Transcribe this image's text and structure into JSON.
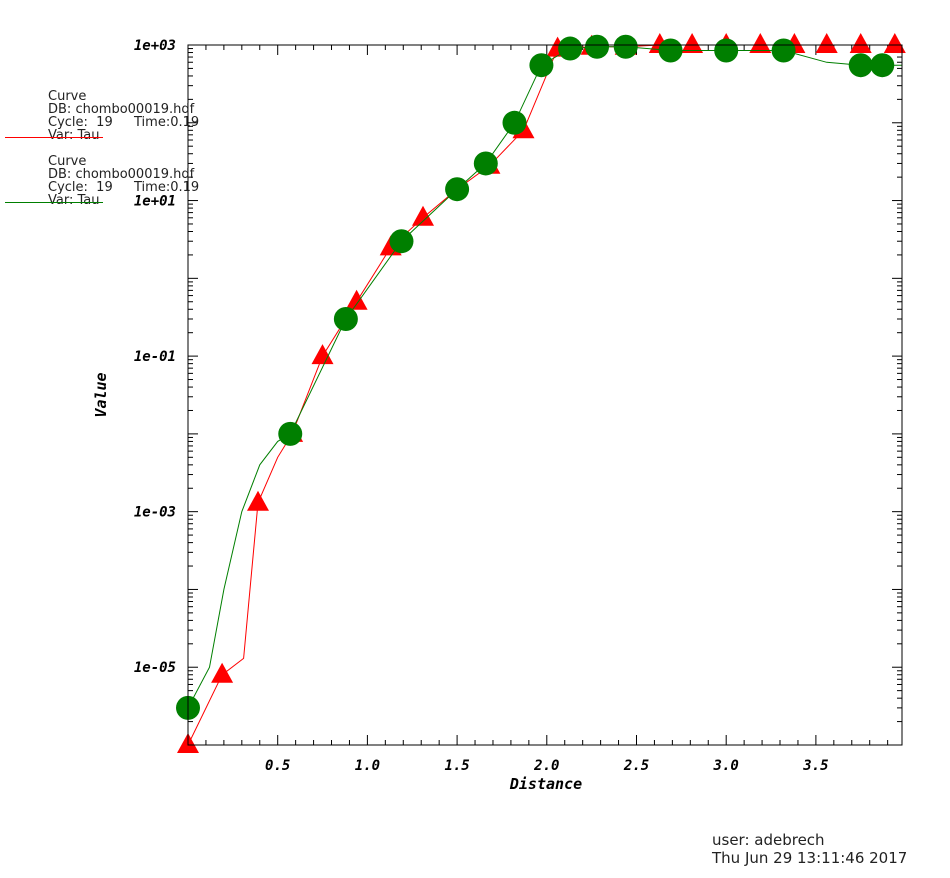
{
  "chart_data": {
    "type": "line",
    "xlabel": "Distance",
    "ylabel": "Value",
    "scale": {
      "x": "linear",
      "y": "log"
    },
    "xlim": [
      0.0,
      3.98
    ],
    "ylim": [
      1e-06,
      1000
    ],
    "x_ticks": [
      0.5,
      1.0,
      1.5,
      2.0,
      2.5,
      3.0,
      3.5
    ],
    "x_tick_labels": [
      "0.5",
      "1.0",
      "1.5",
      "2.0",
      "2.5",
      "3.0",
      "3.5"
    ],
    "y_ticks": [
      1e-05,
      0.001,
      0.1,
      10,
      1000
    ],
    "y_tick_labels": [
      "1e-05",
      "1e-03",
      "1e-01",
      "1e+01",
      "1e+03"
    ],
    "grid": false,
    "legend_position": "left",
    "series": [
      {
        "name": "Curve",
        "color": "#ff0000",
        "marker": "triangle",
        "db": "DB: chombo00019.hdf",
        "cycle": "Cycle:  19",
        "time": "Time:0.19",
        "var": "Var: Tau",
        "x": [
          0.0,
          0.19,
          0.31,
          0.39,
          0.5,
          0.58,
          0.75,
          0.94,
          1.13,
          1.31,
          1.5,
          1.68,
          1.87,
          2.06,
          2.25,
          2.44,
          2.63,
          2.81,
          3.0,
          3.19,
          3.38,
          3.56,
          3.75,
          3.94
        ],
        "y": [
          1e-06,
          8e-06,
          1.3e-05,
          0.0013,
          0.005,
          0.01,
          0.1,
          0.5,
          2.5,
          6,
          14,
          28,
          80,
          900,
          950,
          950,
          1000,
          1000,
          1000,
          1000,
          1000,
          1000,
          1000,
          1000
        ],
        "markers_x": [
          0.0,
          0.19,
          0.39,
          0.58,
          0.75,
          0.94,
          1.13,
          1.31,
          1.68,
          1.87,
          2.06,
          2.25,
          2.44,
          2.63,
          2.81,
          3.0,
          3.19,
          3.38,
          3.56,
          3.75,
          3.94
        ],
        "markers_y": [
          1e-06,
          8e-06,
          0.0013,
          0.01,
          0.1,
          0.5,
          2.5,
          6,
          28,
          80,
          900,
          950,
          950,
          1000,
          1000,
          1000,
          1000,
          1000,
          1000,
          1000,
          1000
        ]
      },
      {
        "name": "Curve",
        "color": "#007f00",
        "marker": "circle",
        "db": "DB: chombo00019.hdf",
        "cycle": "Cycle:  19",
        "time": "Time:0.19",
        "var": "Var: Tau",
        "x": [
          0.0,
          0.12,
          0.2,
          0.3,
          0.4,
          0.5,
          0.57,
          0.88,
          1.19,
          1.5,
          1.66,
          1.82,
          1.97,
          2.13,
          2.28,
          2.44,
          2.69,
          3.0,
          3.32,
          3.56,
          3.75,
          3.87,
          3.98
        ],
        "y": [
          3e-06,
          1e-05,
          0.0001,
          0.001,
          0.004,
          0.008,
          0.01,
          0.3,
          3,
          14,
          30,
          100,
          550,
          900,
          950,
          950,
          850,
          850,
          850,
          600,
          550,
          550,
          550
        ],
        "markers_x": [
          0.0,
          0.57,
          0.88,
          1.19,
          1.5,
          1.66,
          1.82,
          1.97,
          2.13,
          2.28,
          2.44,
          2.69,
          3.0,
          3.32,
          3.75,
          3.87
        ],
        "markers_y": [
          3e-06,
          0.01,
          0.3,
          3,
          14,
          30,
          100,
          550,
          900,
          950,
          950,
          850,
          850,
          850,
          550,
          550
        ]
      }
    ]
  },
  "footer": {
    "user": "user: adebrech",
    "timestamp": "Thu Jun 29 13:11:46 2017"
  }
}
